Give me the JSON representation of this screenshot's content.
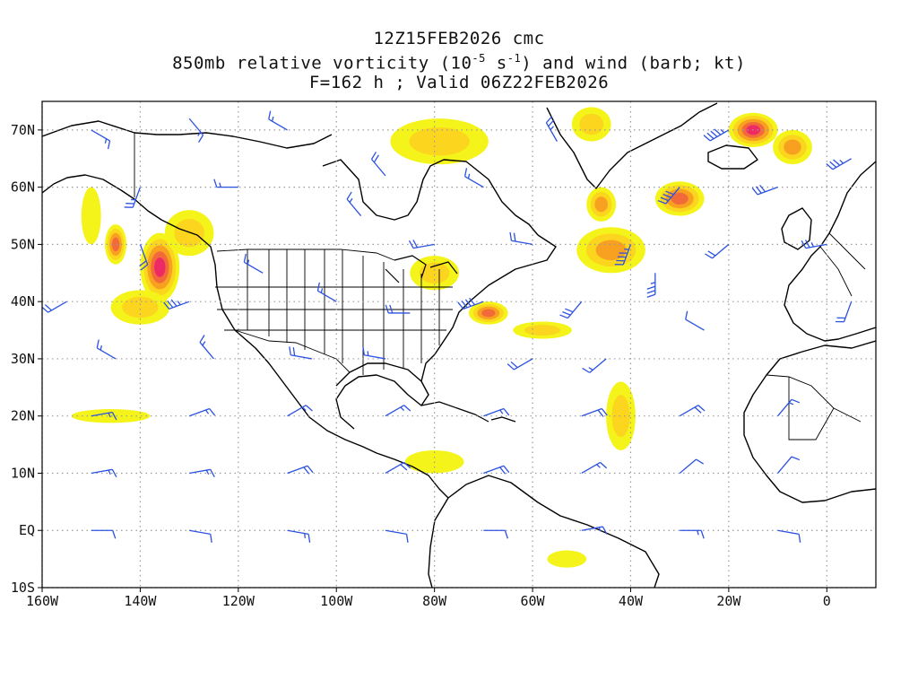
{
  "title": {
    "line1": "12Z15FEB2026 cmc",
    "line2_prefix": "850mb relative vorticity (10",
    "line2_exp1": "-5",
    "line2_mid": " s",
    "line2_exp2": "-1",
    "line2_suffix": ") and wind (barb; kt)",
    "line3": "F=162 h ; Valid 06Z22FEB2026"
  },
  "map": {
    "projection": "equirectangular",
    "lon_range": [
      -160,
      10
    ],
    "lat_range": [
      -10,
      75
    ],
    "grid": "dotted",
    "lon_ticks": [
      {
        "lon": -160,
        "label": "160W"
      },
      {
        "lon": -140,
        "label": "140W"
      },
      {
        "lon": -120,
        "label": "120W"
      },
      {
        "lon": -100,
        "label": "100W"
      },
      {
        "lon": -80,
        "label": "80W"
      },
      {
        "lon": -60,
        "label": "60W"
      },
      {
        "lon": -40,
        "label": "40W"
      },
      {
        "lon": -20,
        "label": "20W"
      },
      {
        "lon": 0,
        "label": "0"
      }
    ],
    "lat_ticks": [
      {
        "lat": 70,
        "label": "70N"
      },
      {
        "lat": 60,
        "label": "60N"
      },
      {
        "lat": 50,
        "label": "50N"
      },
      {
        "lat": 40,
        "label": "40N"
      },
      {
        "lat": 30,
        "label": "30N"
      },
      {
        "lat": 20,
        "label": "20N"
      },
      {
        "lat": 10,
        "label": "10N"
      },
      {
        "lat": 0,
        "label": "EQ"
      },
      {
        "lat": -10,
        "label": "10S"
      }
    ],
    "colors": {
      "low": "#f4f41a",
      "mid": "#fbd51e",
      "high": "#f8a020",
      "higher": "#f36a3a",
      "max": "#ee2a66",
      "barb": "#2c52e0",
      "coast": "#000000",
      "grid": "#9a9a9a"
    },
    "vorticity_areas": [
      {
        "lon": -145,
        "lat": 50,
        "level": 4,
        "rx": 2.2,
        "ry": 3.5
      },
      {
        "lon": -136,
        "lat": 46,
        "level": 5,
        "rx": 4,
        "ry": 6
      },
      {
        "lon": -140,
        "lat": 39,
        "level": 2,
        "rx": 6,
        "ry": 3
      },
      {
        "lon": -150,
        "lat": 55,
        "level": 1,
        "rx": 2,
        "ry": 5
      },
      {
        "lon": -69,
        "lat": 38,
        "level": 4,
        "rx": 4,
        "ry": 2
      },
      {
        "lon": -58,
        "lat": 35,
        "level": 2,
        "rx": 6,
        "ry": 1.5
      },
      {
        "lon": -80,
        "lat": 45,
        "level": 2,
        "rx": 5,
        "ry": 3
      },
      {
        "lon": -44,
        "lat": 49,
        "level": 3,
        "rx": 7,
        "ry": 4
      },
      {
        "lon": -46,
        "lat": 57,
        "level": 3,
        "rx": 3,
        "ry": 3
      },
      {
        "lon": -30,
        "lat": 58,
        "level": 4,
        "rx": 5,
        "ry": 3
      },
      {
        "lon": -15,
        "lat": 70,
        "level": 5,
        "rx": 5,
        "ry": 3
      },
      {
        "lon": -7,
        "lat": 67,
        "level": 3,
        "rx": 4,
        "ry": 3
      },
      {
        "lon": -79,
        "lat": 68,
        "level": 2,
        "rx": 10,
        "ry": 4
      },
      {
        "lon": -130,
        "lat": 52,
        "level": 2,
        "rx": 5,
        "ry": 4
      },
      {
        "lon": -42,
        "lat": 20,
        "level": 2,
        "rx": 3,
        "ry": 6
      },
      {
        "lon": -80,
        "lat": 12,
        "level": 1,
        "rx": 6,
        "ry": 2
      },
      {
        "lon": -48,
        "lat": 71,
        "level": 2,
        "rx": 4,
        "ry": 3
      },
      {
        "lon": -146,
        "lat": 20,
        "level": 1,
        "rx": 8,
        "ry": 1.2
      },
      {
        "lon": -53,
        "lat": -5,
        "level": 1,
        "rx": 4,
        "ry": 1.5
      }
    ],
    "wind_barbs": [
      {
        "lon": -155,
        "lat": 40,
        "dir": 240,
        "speed": 20
      },
      {
        "lon": -140,
        "lat": 60,
        "dir": 200,
        "speed": 25
      },
      {
        "lon": -130,
        "lat": 40,
        "dir": 250,
        "speed": 35
      },
      {
        "lon": -120,
        "lat": 60,
        "dir": 270,
        "speed": 15
      },
      {
        "lon": -110,
        "lat": 70,
        "dir": 300,
        "speed": 15
      },
      {
        "lon": -100,
        "lat": 40,
        "dir": 300,
        "speed": 15
      },
      {
        "lon": -90,
        "lat": 30,
        "dir": 280,
        "speed": 15
      },
      {
        "lon": -80,
        "lat": 50,
        "dir": 260,
        "speed": 20
      },
      {
        "lon": -70,
        "lat": 40,
        "dir": 250,
        "speed": 40
      },
      {
        "lon": -60,
        "lat": 30,
        "dir": 240,
        "speed": 20
      },
      {
        "lon": -50,
        "lat": 40,
        "dir": 220,
        "speed": 30
      },
      {
        "lon": -40,
        "lat": 50,
        "dir": 200,
        "speed": 45
      },
      {
        "lon": -30,
        "lat": 60,
        "dir": 220,
        "speed": 40
      },
      {
        "lon": -20,
        "lat": 70,
        "dir": 240,
        "speed": 45
      },
      {
        "lon": -10,
        "lat": 60,
        "dir": 250,
        "speed": 30
      },
      {
        "lon": 0,
        "lat": 50,
        "dir": 260,
        "speed": 25
      },
      {
        "lon": -150,
        "lat": 20,
        "dir": 80,
        "speed": 15
      },
      {
        "lon": -130,
        "lat": 20,
        "dir": 70,
        "speed": 15
      },
      {
        "lon": -110,
        "lat": 20,
        "dir": 60,
        "speed": 15
      },
      {
        "lon": -90,
        "lat": 20,
        "dir": 60,
        "speed": 15
      },
      {
        "lon": -70,
        "lat": 20,
        "dir": 70,
        "speed": 15
      },
      {
        "lon": -50,
        "lat": 20,
        "dir": 70,
        "speed": 20
      },
      {
        "lon": -30,
        "lat": 20,
        "dir": 60,
        "speed": 20
      },
      {
        "lon": -10,
        "lat": 20,
        "dir": 40,
        "speed": 15
      },
      {
        "lon": -150,
        "lat": 10,
        "dir": 80,
        "speed": 15
      },
      {
        "lon": -130,
        "lat": 10,
        "dir": 80,
        "speed": 15
      },
      {
        "lon": -110,
        "lat": 10,
        "dir": 70,
        "speed": 20
      },
      {
        "lon": -90,
        "lat": 10,
        "dir": 60,
        "speed": 20
      },
      {
        "lon": -70,
        "lat": 10,
        "dir": 70,
        "speed": 20
      },
      {
        "lon": -50,
        "lat": 10,
        "dir": 60,
        "speed": 15
      },
      {
        "lon": -30,
        "lat": 10,
        "dir": 50,
        "speed": 10
      },
      {
        "lon": -10,
        "lat": 10,
        "dir": 40,
        "speed": 10
      },
      {
        "lon": -150,
        "lat": 0,
        "dir": 90,
        "speed": 10
      },
      {
        "lon": -130,
        "lat": 0,
        "dir": 100,
        "speed": 10
      },
      {
        "lon": -110,
        "lat": 0,
        "dir": 100,
        "speed": 15
      },
      {
        "lon": -90,
        "lat": 0,
        "dir": 100,
        "speed": 10
      },
      {
        "lon": -70,
        "lat": 0,
        "dir": 90,
        "speed": 10
      },
      {
        "lon": -50,
        "lat": 0,
        "dir": 80,
        "speed": 15
      },
      {
        "lon": -30,
        "lat": 0,
        "dir": 90,
        "speed": 15
      },
      {
        "lon": -10,
        "lat": 0,
        "dir": 100,
        "speed": 10
      },
      {
        "lon": -145,
        "lat": 30,
        "dir": 300,
        "speed": 15
      },
      {
        "lon": -125,
        "lat": 30,
        "dir": 320,
        "speed": 15
      },
      {
        "lon": -105,
        "lat": 30,
        "dir": 280,
        "speed": 20
      },
      {
        "lon": -85,
        "lat": 38,
        "dir": 270,
        "speed": 20
      },
      {
        "lon": -45,
        "lat": 30,
        "dir": 230,
        "speed": 15
      },
      {
        "lon": -25,
        "lat": 35,
        "dir": 300,
        "speed": 10
      },
      {
        "lon": -150,
        "lat": 70,
        "dir": 120,
        "speed": 15
      },
      {
        "lon": -130,
        "lat": 72,
        "dir": 140,
        "speed": 15
      },
      {
        "lon": -90,
        "lat": 62,
        "dir": 320,
        "speed": 20
      },
      {
        "lon": -70,
        "lat": 60,
        "dir": 300,
        "speed": 15
      },
      {
        "lon": -55,
        "lat": 68,
        "dir": 330,
        "speed": 25
      },
      {
        "lon": 5,
        "lat": 65,
        "dir": 240,
        "speed": 35
      },
      {
        "lon": 5,
        "lat": 40,
        "dir": 200,
        "speed": 20
      },
      {
        "lon": -140,
        "lat": 50,
        "dir": 160,
        "speed": 20
      },
      {
        "lon": -115,
        "lat": 45,
        "dir": 300,
        "speed": 15
      },
      {
        "lon": -95,
        "lat": 55,
        "dir": 320,
        "speed": 15
      },
      {
        "lon": -60,
        "lat": 50,
        "dir": 280,
        "speed": 20
      },
      {
        "lon": -35,
        "lat": 45,
        "dir": 180,
        "speed": 35
      },
      {
        "lon": -20,
        "lat": 50,
        "dir": 230,
        "speed": 20
      }
    ]
  }
}
